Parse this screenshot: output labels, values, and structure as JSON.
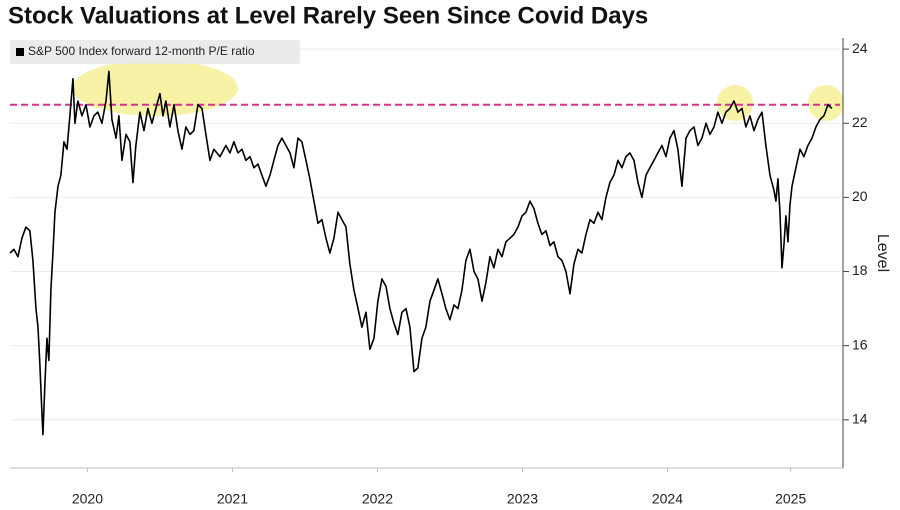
{
  "chart_data": {
    "type": "line",
    "title": "Stock Valuations at Level Rarely Seen Since Covid Days",
    "y_label": "Level",
    "x": [
      2019.966,
      2019.993,
      2020.021,
      2020.048,
      2020.076,
      2020.103,
      2020.124,
      2020.145,
      2020.159,
      2020.172,
      2020.186,
      2020.193,
      2020.207,
      2020.221,
      2020.234,
      2020.248,
      2020.262,
      2020.276,
      2020.297,
      2020.317,
      2020.338,
      2020.359,
      2020.379,
      2020.4,
      2020.414,
      2020.434,
      2020.462,
      2020.49,
      2020.517,
      2020.545,
      2020.572,
      2020.6,
      2020.628,
      2020.648,
      2020.669,
      2020.697,
      2020.717,
      2020.738,
      2020.766,
      2020.793,
      2020.814,
      2020.834,
      2020.862,
      2020.89,
      2020.917,
      2020.945,
      2020.972,
      2021.0,
      2021.021,
      2021.041,
      2021.069,
      2021.097,
      2021.124,
      2021.152,
      2021.179,
      2021.207,
      2021.234,
      2021.262,
      2021.29,
      2021.317,
      2021.345,
      2021.372,
      2021.414,
      2021.455,
      2021.483,
      2021.51,
      2021.538,
      2021.566,
      2021.593,
      2021.621,
      2021.648,
      2021.676,
      2021.703,
      2021.731,
      2021.759,
      2021.786,
      2021.814,
      2021.841,
      2021.869,
      2021.897,
      2021.924,
      2021.952,
      2021.979,
      2022.007,
      2022.034,
      2022.062,
      2022.09,
      2022.117,
      2022.145,
      2022.172,
      2022.2,
      2022.228,
      2022.255,
      2022.283,
      2022.31,
      2022.338,
      2022.366,
      2022.393,
      2022.421,
      2022.448,
      2022.476,
      2022.503,
      2022.531,
      2022.559,
      2022.586,
      2022.614,
      2022.641,
      2022.669,
      2022.697,
      2022.724,
      2022.752,
      2022.779,
      2022.807,
      2022.834,
      2022.862,
      2022.89,
      2022.917,
      2022.945,
      2022.972,
      2023.0,
      2023.028,
      2023.055,
      2023.083,
      2023.11,
      2023.138,
      2023.166,
      2023.193,
      2023.221,
      2023.248,
      2023.276,
      2023.303,
      2023.331,
      2023.359,
      2023.386,
      2023.414,
      2023.441,
      2023.469,
      2023.497,
      2023.524,
      2023.552,
      2023.579,
      2023.607,
      2023.634,
      2023.662,
      2023.69,
      2023.717,
      2023.745,
      2023.772,
      2023.8,
      2023.828,
      2023.855,
      2023.883,
      2023.91,
      2023.938,
      2023.966,
      2023.993,
      2024.021,
      2024.048,
      2024.076,
      2024.103,
      2024.131,
      2024.159,
      2024.186,
      2024.214,
      2024.241,
      2024.269,
      2024.297,
      2024.324,
      2024.352,
      2024.379,
      2024.407,
      2024.434,
      2024.462,
      2024.49,
      2024.517,
      2024.545,
      2024.572,
      2024.6,
      2024.628,
      2024.655,
      2024.683,
      2024.71,
      2024.738,
      2024.766,
      2024.793,
      2024.821,
      2024.848,
      2024.876,
      2024.903,
      2024.931,
      2024.959,
      2024.986,
      2025.014,
      2025.041,
      2025.069,
      2025.097,
      2025.124,
      2025.152,
      2025.179,
      2025.207,
      2025.234,
      2025.248,
      2025.262,
      2025.276,
      2025.29,
      2025.303,
      2025.317,
      2025.331,
      2025.345,
      2025.359,
      2025.386,
      2025.414,
      2025.441,
      2025.469,
      2025.497,
      2025.524,
      2025.552,
      2025.579,
      2025.607,
      2025.634
    ],
    "series": [
      {
        "name": "S&P 500 Index forward 12-month P/E ratio",
        "color": "#000000",
        "values": [
          18.5,
          18.6,
          18.4,
          18.9,
          19.2,
          19.1,
          18.3,
          17.0,
          16.5,
          15.5,
          14.2,
          13.6,
          15.0,
          16.2,
          15.6,
          17.5,
          18.5,
          19.6,
          20.3,
          20.6,
          21.5,
          21.3,
          22.2,
          23.2,
          22.0,
          22.6,
          22.2,
          22.5,
          21.9,
          22.2,
          22.3,
          22.0,
          22.6,
          23.4,
          22.1,
          21.6,
          22.2,
          21.0,
          21.7,
          21.5,
          20.4,
          21.4,
          22.3,
          21.8,
          22.4,
          22.0,
          22.4,
          22.8,
          22.2,
          22.6,
          21.9,
          22.5,
          21.8,
          21.3,
          21.9,
          21.7,
          21.8,
          22.5,
          22.4,
          21.7,
          21.0,
          21.3,
          21.1,
          21.4,
          21.2,
          21.5,
          21.2,
          21.3,
          21.0,
          21.1,
          20.8,
          20.9,
          20.6,
          20.3,
          20.6,
          21.0,
          21.4,
          21.6,
          21.4,
          21.2,
          20.8,
          21.6,
          21.5,
          21.0,
          20.5,
          19.9,
          19.3,
          19.4,
          18.9,
          18.5,
          18.9,
          19.6,
          19.4,
          19.2,
          18.2,
          17.5,
          17.0,
          16.5,
          16.9,
          15.9,
          16.2,
          17.2,
          17.8,
          17.6,
          17.0,
          16.6,
          16.3,
          16.9,
          17.0,
          16.5,
          15.3,
          15.4,
          16.2,
          16.5,
          17.2,
          17.5,
          17.8,
          17.4,
          17.0,
          16.7,
          17.1,
          17.0,
          17.5,
          18.3,
          18.6,
          18.0,
          17.8,
          17.2,
          17.7,
          18.4,
          18.1,
          18.6,
          18.4,
          18.8,
          18.9,
          19.0,
          19.2,
          19.5,
          19.6,
          19.9,
          19.7,
          19.3,
          19.0,
          19.1,
          18.7,
          18.8,
          18.4,
          18.3,
          18.0,
          17.4,
          18.2,
          18.6,
          18.5,
          19.0,
          19.4,
          19.3,
          19.6,
          19.4,
          20.0,
          20.4,
          20.6,
          21.0,
          20.8,
          21.1,
          21.2,
          21.0,
          20.4,
          20.0,
          20.6,
          20.8,
          21.0,
          21.2,
          21.4,
          21.1,
          21.6,
          21.8,
          21.3,
          20.3,
          21.6,
          21.8,
          21.9,
          21.4,
          21.6,
          22.0,
          21.7,
          21.9,
          22.3,
          22.0,
          22.3,
          22.4,
          22.6,
          22.3,
          22.4,
          21.9,
          22.2,
          21.8,
          22.1,
          22.3,
          21.4,
          20.6,
          20.2,
          19.9,
          20.5,
          19.6,
          18.1,
          18.7,
          19.5,
          18.8,
          19.8,
          20.3,
          20.8,
          21.3,
          21.1,
          21.4,
          21.6,
          21.9,
          22.1,
          22.2,
          22.5,
          22.4
        ]
      }
    ],
    "xlim": [
      2019.966,
      2025.69
    ],
    "ylim": [
      12.7,
      24.3
    ],
    "xticks": [
      {
        "value": 2020.5,
        "label": "2020"
      },
      {
        "value": 2021.5,
        "label": "2021"
      },
      {
        "value": 2022.5,
        "label": "2022"
      },
      {
        "value": 2023.5,
        "label": "2023"
      },
      {
        "value": 2024.5,
        "label": "2024"
      },
      {
        "value": 2025.35,
        "label": "2025"
      }
    ],
    "yticks": [
      14,
      16,
      18,
      20,
      22,
      24
    ],
    "y_axis_side": "right",
    "grid": true,
    "legend": "top-left",
    "reference_line": {
      "value": 22.5,
      "color": "#d6338a"
    }
  }
}
